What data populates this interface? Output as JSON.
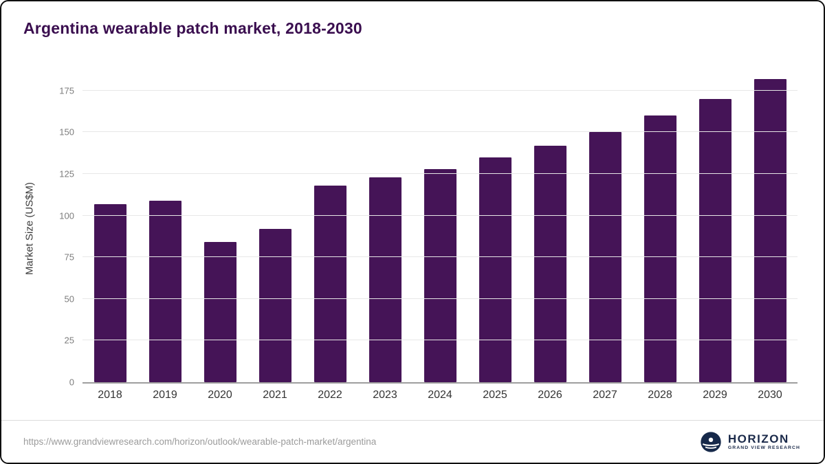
{
  "chart_data": {
    "type": "bar",
    "title": "Argentina wearable patch market, 2018-2030",
    "categories": [
      "2018",
      "2019",
      "2020",
      "2021",
      "2022",
      "2023",
      "2024",
      "2025",
      "2026",
      "2027",
      "2028",
      "2029",
      "2030"
    ],
    "values": [
      107,
      109,
      84,
      92,
      118,
      123,
      128,
      135,
      142,
      150,
      160,
      170,
      182
    ],
    "xlabel": "",
    "ylabel": "Market Size (US$M)",
    "ylim": [
      0,
      175
    ],
    "yticks": [
      0,
      25,
      50,
      75,
      100,
      125,
      150,
      175
    ],
    "grid": true,
    "legend": "none",
    "bar_color": "#451457",
    "title_color": "#3a0e4f"
  },
  "footer": {
    "source_url": "https://www.grandviewresearch.com/horizon/outlook/wearable-patch-market/argentina",
    "logo_title": "HORIZON",
    "logo_subtitle": "GRAND VIEW RESEARCH"
  }
}
